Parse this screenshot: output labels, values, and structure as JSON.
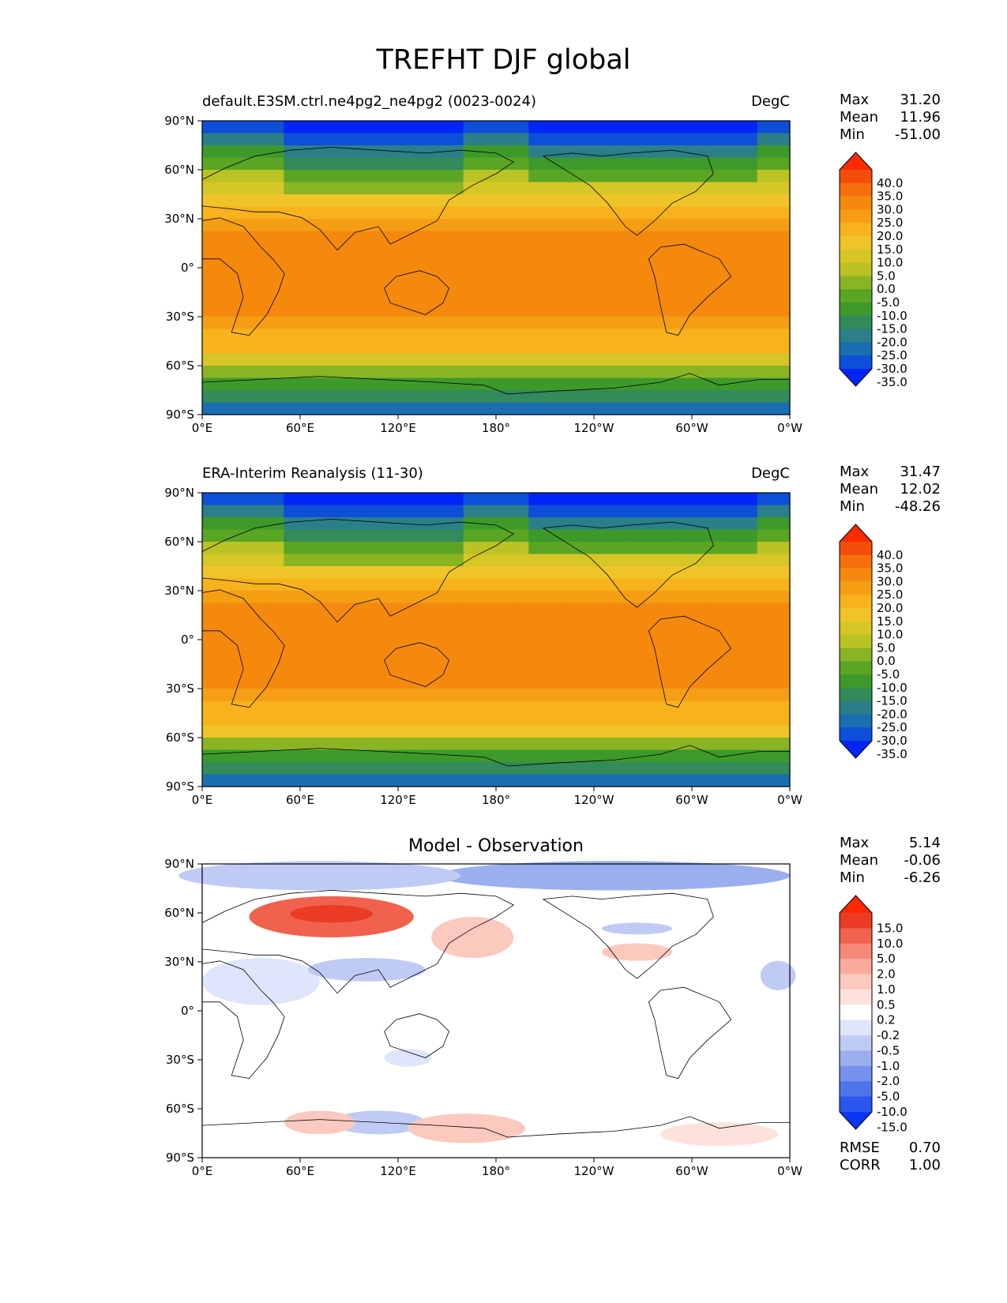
{
  "figure_title": "TREFHT DJF global",
  "panels": [
    {
      "title_left": "default.E3SM.ctrl.ne4pg2_ne4pg2 (0023-0024)",
      "title_right": "DegC",
      "title_center": "",
      "stats": [
        {
          "label": "Max",
          "value": "31.20"
        },
        {
          "label": "Mean",
          "value": "11.96"
        },
        {
          "label": "Min",
          "value": "-51.00"
        }
      ],
      "colorbar_ticks": [
        "40.0",
        "35.0",
        "30.0",
        "25.0",
        "20.0",
        "15.0",
        "10.0",
        "5.0",
        "0.0",
        "-5.0",
        "-10.0",
        "-15.0",
        "-20.0",
        "-25.0",
        "-30.0",
        "-35.0"
      ],
      "colorbar_colors": [
        "#0025f5",
        "#0d4fd8",
        "#1a6fb0",
        "#2a7f88",
        "#338a5a",
        "#3d9a2a",
        "#5aa524",
        "#8ab424",
        "#bbc224",
        "#d6c626",
        "#f0c428",
        "#f7b21c",
        "#f59e14",
        "#f5890e",
        "#f5700c",
        "#f24e0a",
        "#ff2a00"
      ],
      "extras": []
    },
    {
      "title_left": "ERA-Interim Reanalysis (11-30)",
      "title_right": "DegC",
      "title_center": "",
      "stats": [
        {
          "label": "Max",
          "value": "31.47"
        },
        {
          "label": "Mean",
          "value": "12.02"
        },
        {
          "label": "Min",
          "value": "-48.26"
        }
      ],
      "colorbar_ticks": [
        "40.0",
        "35.0",
        "30.0",
        "25.0",
        "20.0",
        "15.0",
        "10.0",
        "5.0",
        "0.0",
        "-5.0",
        "-10.0",
        "-15.0",
        "-20.0",
        "-25.0",
        "-30.0",
        "-35.0"
      ],
      "colorbar_colors": [
        "#0025f5",
        "#0d4fd8",
        "#1a6fb0",
        "#2a7f88",
        "#338a5a",
        "#3d9a2a",
        "#5aa524",
        "#8ab424",
        "#bbc224",
        "#d6c626",
        "#f0c428",
        "#f7b21c",
        "#f59e14",
        "#f5890e",
        "#f5700c",
        "#f24e0a",
        "#ff2a00"
      ],
      "extras": []
    },
    {
      "title_left": "",
      "title_right": "",
      "title_center": "Model - Observation",
      "stats": [
        {
          "label": "Max",
          "value": "5.14"
        },
        {
          "label": "Mean",
          "value": "-0.06"
        },
        {
          "label": "Min",
          "value": "-6.26"
        }
      ],
      "colorbar_ticks": [
        "15.0",
        "10.0",
        "5.0",
        "2.0",
        "1.0",
        "0.5",
        "0.2",
        "-0.2",
        "-0.5",
        "-1.0",
        "-2.0",
        "-5.0",
        "-10.0",
        "-15.0"
      ],
      "colorbar_colors": [
        "#0a35f5",
        "#2a55ee",
        "#4e74ea",
        "#7591ec",
        "#9aaef0",
        "#bfcbf5",
        "#dfe5fa",
        "#ffffff",
        "#fde2dc",
        "#fcc9be",
        "#f9ab9c",
        "#f58877",
        "#f0624e",
        "#ea3c24",
        "#ff2800"
      ],
      "extras": [
        {
          "label": "RMSE",
          "value": "0.70"
        },
        {
          "label": "CORR",
          "value": "1.00"
        }
      ]
    }
  ],
  "axes": {
    "lon_ticks": [
      "0°E",
      "60°E",
      "120°E",
      "180°",
      "120°W",
      "60°W",
      "0°W"
    ],
    "lat_ticks": [
      "90°N",
      "60°N",
      "30°N",
      "0°",
      "30°S",
      "60°S",
      "90°S"
    ]
  }
}
